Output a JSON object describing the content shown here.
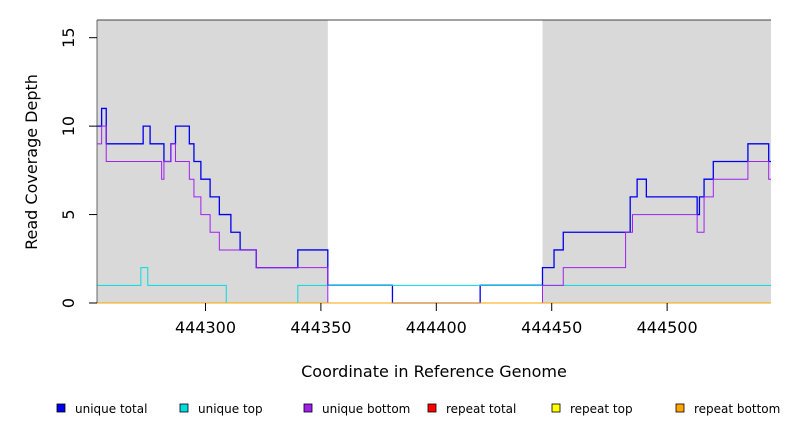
{
  "chart_data": {
    "type": "line",
    "title": "",
    "xlabel": "Coordinate in Reference Genome",
    "ylabel": "Read Coverage Depth",
    "xlim": [
      444253,
      444545
    ],
    "ylim": [
      0,
      16
    ],
    "x_ticks": [
      444300,
      444350,
      444400,
      444450,
      444500
    ],
    "y_ticks": [
      0,
      5,
      10,
      15
    ],
    "shaded_regions": [
      [
        444253,
        444353
      ],
      [
        444446,
        444545
      ]
    ],
    "shading_color": "#d9d9d9",
    "legend_position": "bottom",
    "series": [
      {
        "name": "unique total",
        "color": "#0000ee",
        "x": [
          444253,
          444255,
          444257,
          444273,
          444276,
          444282,
          444285,
          444287,
          444293,
          444295,
          444298,
          444302,
          444306,
          444311,
          444315,
          444322,
          444340,
          444353,
          444381,
          444419,
          444446,
          444451,
          444455,
          444484,
          444487,
          444491,
          444513,
          444514,
          444516,
          444520,
          444535,
          444544
        ],
        "y": [
          10,
          11,
          9,
          10,
          9,
          8,
          9,
          10,
          9,
          8,
          7,
          6,
          5,
          4,
          3,
          2,
          3,
          1,
          0,
          1,
          2,
          3,
          4,
          6,
          7,
          6,
          5,
          6,
          7,
          8,
          9,
          8
        ]
      },
      {
        "name": "unique top",
        "color": "#00dddd",
        "x": [
          444253,
          444272,
          444275,
          444309,
          444340,
          444353
        ],
        "y": [
          1,
          2,
          1,
          0,
          1,
          1
        ]
      },
      {
        "name": "unique bottom",
        "color": "#a020f0",
        "x": [
          444253,
          444255,
          444257,
          444281,
          444282,
          444285,
          444287,
          444293,
          444295,
          444298,
          444302,
          444306,
          444311,
          444315,
          444322,
          444353,
          444446,
          444455,
          444482,
          444485,
          444513,
          444516,
          444520,
          444535,
          444544
        ],
        "y": [
          9,
          10,
          8,
          7,
          8,
          9,
          8,
          7,
          6,
          5,
          4,
          3,
          3,
          3,
          2,
          0,
          1,
          2,
          4,
          5,
          4,
          6,
          7,
          8,
          7
        ]
      },
      {
        "name": "repeat total",
        "color": "#ff0000",
        "x": [],
        "y": []
      },
      {
        "name": "repeat top",
        "color": "#ffff00",
        "x": [],
        "y": []
      },
      {
        "name": "repeat bottom",
        "color": "#ffa500",
        "x": [
          444253,
          444545
        ],
        "y": [
          0,
          0
        ]
      }
    ]
  }
}
